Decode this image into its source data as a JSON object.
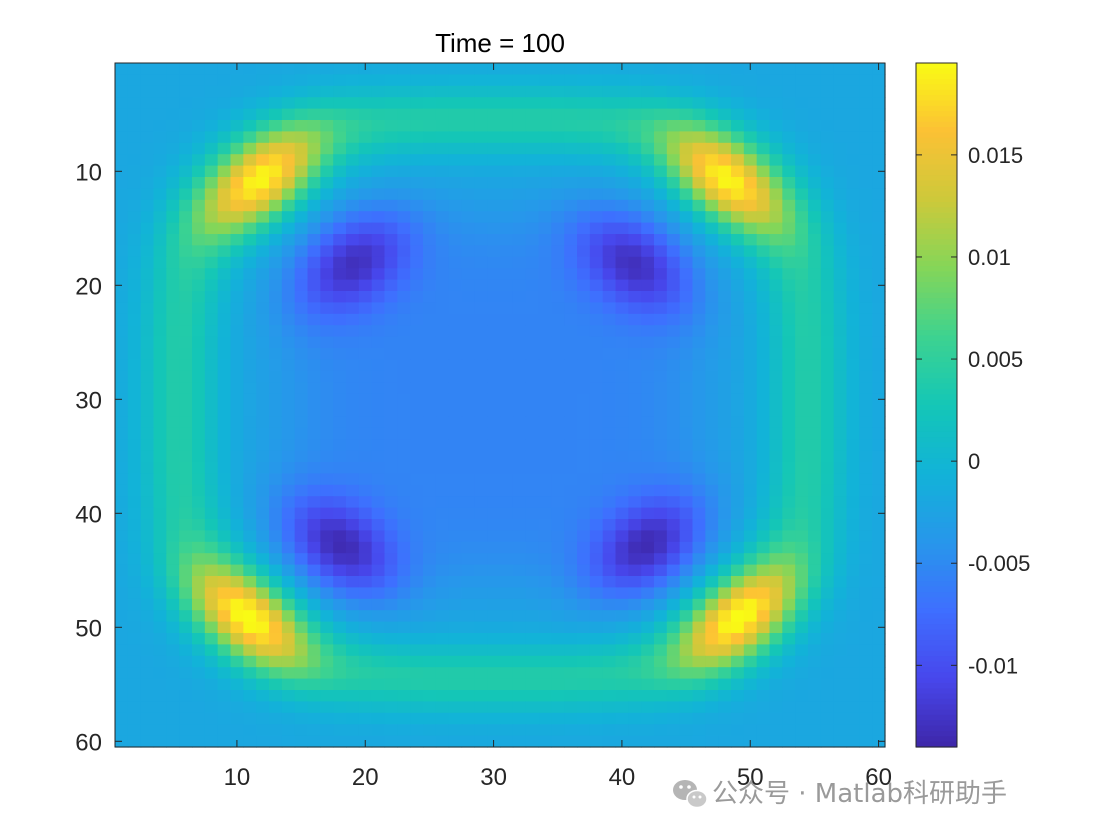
{
  "chart_data": {
    "type": "heatmap",
    "title": "Time = 100",
    "xlabel": "",
    "ylabel": "",
    "grid_size": [
      60,
      60
    ],
    "xlim": [
      0.5,
      60.5
    ],
    "ylim": [
      0.5,
      60.5
    ],
    "y_direction": "top-to-bottom",
    "x_ticks": [
      10,
      20,
      30,
      40,
      50,
      60
    ],
    "y_ticks": [
      10,
      20,
      30,
      40,
      50,
      60
    ],
    "x_tick_labels": [
      "10",
      "20",
      "30",
      "40",
      "50",
      "60"
    ],
    "y_tick_labels": [
      "10",
      "20",
      "30",
      "40",
      "50",
      "60"
    ],
    "colormap": "parula",
    "clim": [
      -0.014,
      0.0195
    ],
    "colorbar_ticks": [
      -0.01,
      -0.005,
      0,
      0.005,
      0.01,
      0.015
    ],
    "colorbar_tick_labels": [
      "-0.01",
      "-0.005",
      "0",
      "0.005",
      "0.01",
      "0.015"
    ],
    "field_features": {
      "background_value": -0.002,
      "center": [
        30,
        30
      ],
      "center_value": -0.0045,
      "corner_peaks": [
        {
          "x": 12,
          "y": 11,
          "value": 0.0195
        },
        {
          "x": 48,
          "y": 11,
          "value": 0.0195
        },
        {
          "x": 11,
          "y": 49,
          "value": 0.0195
        },
        {
          "x": 49,
          "y": 49,
          "value": 0.0195
        }
      ],
      "trough_lobes": [
        {
          "x": 19,
          "y": 18,
          "value": -0.013
        },
        {
          "x": 41,
          "y": 18,
          "value": -0.013
        },
        {
          "x": 18,
          "y": 43,
          "value": -0.014
        },
        {
          "x": 42,
          "y": 43,
          "value": -0.014
        }
      ]
    }
  },
  "watermark": {
    "icon": "wechat-icon",
    "text": "公众号 · Matlab科研助手"
  }
}
